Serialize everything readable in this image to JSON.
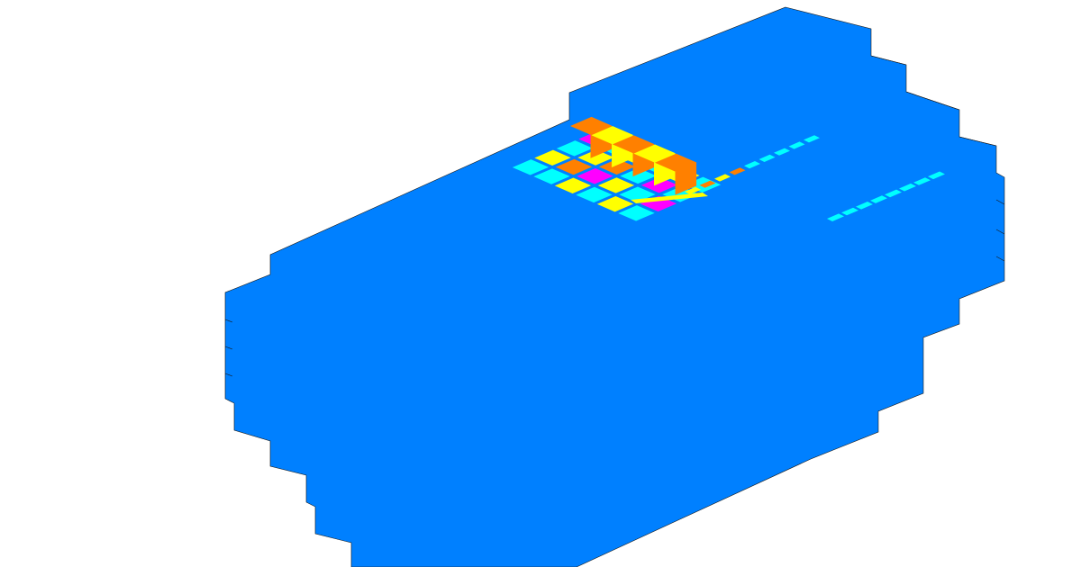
{
  "scene": {
    "palette": {
      "background": "#ffffff",
      "body": "#0080ff",
      "cyan": "#00ffff",
      "yellow": "#ffff00",
      "orange": "#ff8000",
      "magenta": "#ff00ff",
      "edge": "#000000"
    },
    "grid_cells": [
      [
        "magenta",
        "cyan",
        "yellow",
        "cyan",
        "yellow",
        "cyan"
      ],
      [
        "cyan",
        "yellow",
        "orange",
        "cyan",
        "magenta",
        "cyan"
      ],
      [
        "yellow",
        "orange",
        "magenta",
        "yellow",
        "cyan",
        "magenta"
      ],
      [
        "cyan",
        "cyan",
        "yellow",
        "cyan",
        "yellow",
        "cyan"
      ]
    ],
    "raised_blocks": [
      "orange",
      "yellow",
      "orange",
      "yellow",
      "orange"
    ],
    "channel_cells": [
      "yellow",
      "orange",
      "yellow",
      "orange",
      "cyan",
      "cyan",
      "cyan",
      "cyan",
      "cyan"
    ],
    "rod_cells": 8
  }
}
